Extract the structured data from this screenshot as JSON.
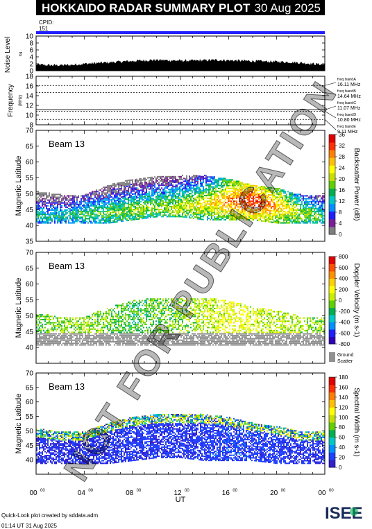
{
  "header": {
    "title": "HOKKAIDO RADAR SUMMARY PLOT",
    "date": "30 Aug 2025",
    "cpid_label": "CPID:",
    "cpid_value": "151"
  },
  "footer": {
    "credit": "Quick-Look plot created by sddata.adm",
    "timestamp": "01:14 UT 31 Aug 2025",
    "logo_text": "ISEE"
  },
  "watermark": "NOT FOR PUBLICATION",
  "colors": {
    "cpid_bar": "#2020ff",
    "ground_scatter": "#909090",
    "power_scale": [
      "#7f7f7f",
      "#7a1f99",
      "#2020ff",
      "#0090ff",
      "#00c8c8",
      "#00b050",
      "#60d000",
      "#c8e000",
      "#ffff00",
      "#ffc000",
      "#ff8000",
      "#ff3000",
      "#e00000"
    ],
    "velocity_scale": [
      "#e00000",
      "#ff5000",
      "#ff9000",
      "#ffd000",
      "#ffff00",
      "#c8f000",
      "#60d000",
      "#00b050",
      "#00c8c8",
      "#0090ff",
      "#2020ff",
      "#3000c0"
    ],
    "width_scale": [
      "#3020d0",
      "#2040ff",
      "#0090ff",
      "#00c8c8",
      "#00b050",
      "#60d000",
      "#c8e000",
      "#ffff00",
      "#ffc000",
      "#ff8000",
      "#ff3000",
      "#e00000"
    ]
  },
  "chart_data": [
    {
      "type": "area",
      "panel": "noise",
      "ylabel": "Noise Level",
      "ylabel_sub": "log",
      "yticks": [
        0,
        2,
        4,
        6,
        8,
        10
      ],
      "ylim": [
        0,
        10
      ],
      "x": [
        0,
        1,
        2,
        3,
        4,
        5,
        6,
        7,
        8,
        9,
        10,
        11,
        12,
        13,
        14,
        15,
        16,
        17,
        18,
        19,
        20,
        21,
        22,
        23,
        24
      ],
      "values": [
        1.8,
        1.6,
        1.6,
        1.7,
        2.0,
        2.2,
        2.4,
        2.6,
        2.8,
        3.0,
        3.1,
        3.0,
        2.9,
        2.9,
        3.0,
        3.1,
        3.0,
        2.9,
        2.8,
        2.7,
        2.6,
        2.5,
        2.3,
        2.0,
        1.8
      ],
      "title": "",
      "xlabel": ""
    },
    {
      "type": "line",
      "panel": "frequency",
      "ylabel": "Frequency",
      "ylabel_sub": "(MHz)",
      "yticks": [
        8,
        10,
        12,
        14,
        16,
        18
      ],
      "ylim": [
        8,
        18
      ],
      "bands": [
        {
          "label": "freq bandA",
          "value": "16.11 MHz",
          "freq": 16.11
        },
        {
          "label": "freq bandB",
          "value": "14.64 MHz",
          "freq": 14.64
        },
        {
          "label": "freq bandC",
          "value": "11.07 MHz",
          "freq": 11.07
        },
        {
          "label": "freq bandD",
          "value": "10.80 MHz",
          "freq": 10.8
        },
        {
          "label": "freq bandE",
          "value": "9.11 MHz",
          "freq": 9.11
        }
      ],
      "title": "",
      "xlabel": ""
    },
    {
      "type": "heatmap",
      "panel": "power",
      "beam_label": "Beam 13",
      "ylabel": "Magnetic Latitude",
      "ylim": [
        35,
        70
      ],
      "yticks": [
        35,
        40,
        45,
        50,
        55,
        60,
        65,
        70
      ],
      "colorbar_label": "Backscatter Power (dB)",
      "colorbar_ticks": [
        0,
        4,
        8,
        12,
        16,
        20,
        24,
        28,
        32,
        36
      ],
      "colorbar_range": [
        0,
        36
      ],
      "series": [
        {
          "name": "scatter",
          "ut": [
            0,
            2,
            4,
            6,
            8,
            10,
            12,
            14,
            16,
            18,
            20,
            22,
            24
          ],
          "lat_low": [
            41,
            41,
            41,
            41,
            42,
            43,
            43,
            42,
            42,
            42,
            41,
            41,
            41
          ],
          "lat_high": [
            51,
            50,
            50,
            53,
            55,
            56,
            56,
            56,
            55,
            53,
            52,
            50,
            50
          ],
          "peak_lat": [
            43,
            43,
            44,
            44,
            45,
            46,
            46,
            47,
            48,
            48,
            46,
            44,
            43
          ],
          "peak_power": [
            14,
            14,
            16,
            18,
            20,
            20,
            22,
            24,
            30,
            34,
            28,
            20,
            16
          ]
        }
      ],
      "title": "",
      "xlabel": ""
    },
    {
      "type": "heatmap",
      "panel": "velocity",
      "beam_label": "Beam 13",
      "ylabel": "Magnetic Latitude",
      "ylim": [
        35,
        70
      ],
      "yticks": [
        40,
        45,
        50,
        55,
        60,
        65,
        70
      ],
      "colorbar_label": "Doppler Velocity (m s-1)",
      "colorbar_ticks": [
        800,
        600,
        400,
        200,
        0,
        -200,
        -400,
        -600,
        -800
      ],
      "colorbar_range": [
        -800,
        800
      ],
      "ground_scatter_label": [
        "Ground",
        "Scatter"
      ],
      "series": [
        {
          "name": "ionospheric",
          "ut": [
            0,
            4,
            8,
            12,
            16,
            20,
            24
          ],
          "velocity": [
            -100,
            0,
            -150,
            -50,
            150,
            50,
            -50
          ]
        },
        {
          "name": "ground",
          "lat_low": 41,
          "lat_high": 45
        }
      ],
      "title": "",
      "xlabel": ""
    },
    {
      "type": "heatmap",
      "panel": "width",
      "beam_label": "Beam 13",
      "ylabel": "Magnetic Latitude",
      "xlabel": "UT",
      "ylim": [
        35,
        70
      ],
      "yticks": [
        40,
        45,
        50,
        55,
        60,
        65,
        70
      ],
      "xlim": [
        0,
        24
      ],
      "xticks": [
        {
          "hour": 0,
          "label": "00",
          "sup": "00"
        },
        {
          "hour": 4,
          "label": "04",
          "sup": "00"
        },
        {
          "hour": 8,
          "label": "08",
          "sup": "00"
        },
        {
          "hour": 12,
          "label": "12",
          "sup": "00"
        },
        {
          "hour": 16,
          "label": "16",
          "sup": "00"
        },
        {
          "hour": 20,
          "label": "20",
          "sup": "00"
        },
        {
          "hour": 24,
          "label": "00",
          "sup": "00"
        }
      ],
      "colorbar_label": "Spectral Width (m s-1)",
      "colorbar_ticks": [
        0,
        20,
        40,
        60,
        80,
        100,
        120,
        140,
        160,
        180
      ],
      "colorbar_range": [
        0,
        180
      ],
      "series": [
        {
          "name": "width",
          "ut": [
            0,
            4,
            8,
            12,
            16,
            20,
            24
          ],
          "typical_width": [
            5,
            5,
            10,
            8,
            12,
            10,
            5
          ]
        }
      ],
      "title": ""
    }
  ]
}
